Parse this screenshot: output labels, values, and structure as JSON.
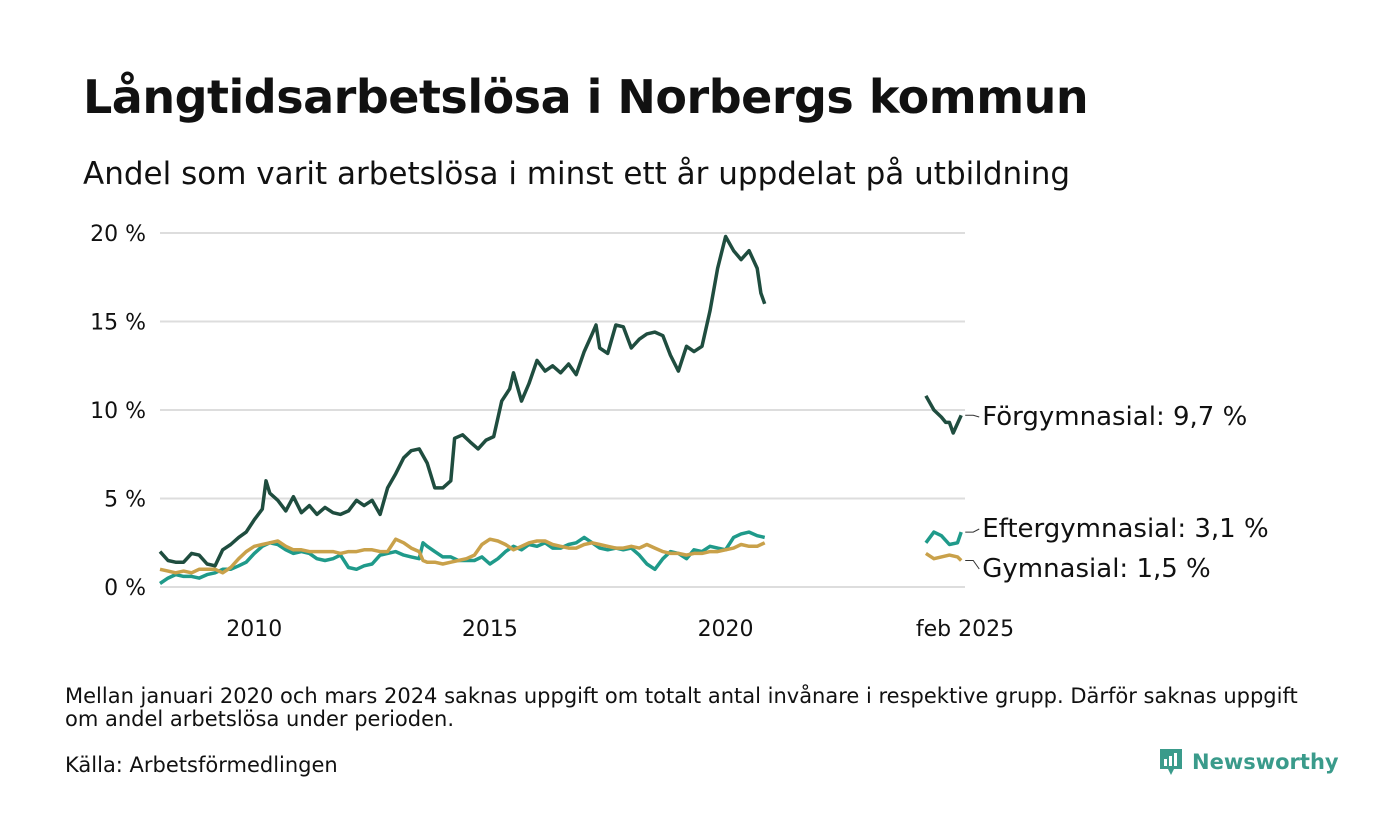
{
  "title": "Långtidsarbetslösa i Norbergs kommun",
  "subtitle": "Andel som varit arbetslösa i minst ett år uppdelat på utbildning",
  "note": "Mellan januari 2020 och mars 2024 saknas uppgift om totalt antal invånare i respektive grupp. Därför saknas uppgift om andel arbetslösa under perioden.",
  "source": "Källa: Arbetsförmedlingen",
  "brand": "Newsworthy",
  "colors": {
    "forgymnasial": "#1f4d3f",
    "eftergymnasial": "#1f9a8a",
    "gymnasial": "#c9a14a",
    "grid": "#dddddd",
    "brand": "#3a9b8b"
  },
  "chart_data": {
    "type": "line",
    "title": "Långtidsarbetslösa i Norbergs kommun",
    "subtitle": "Andel som varit arbetslösa i minst ett år uppdelat på utbildning",
    "xlabel": "",
    "ylabel": "",
    "ylim": [
      0,
      20
    ],
    "yticks": [
      0,
      5,
      10,
      15,
      20
    ],
    "ytick_labels": [
      "0 %",
      "5 %",
      "10 %",
      "15 %",
      "20 %"
    ],
    "xticks": [
      2010,
      2015,
      2020,
      2025.08
    ],
    "xtick_labels": [
      "2010",
      "2015",
      "2020",
      "feb 2025"
    ],
    "grid": true,
    "series": [
      {
        "name": "Förgymnasial",
        "label": "Förgymnasial: 9,7 %",
        "color": "#1f4d3f",
        "segments": [
          [
            [
              2008.0,
              2.0
            ],
            [
              2008.17,
              1.5
            ],
            [
              2008.33,
              1.4
            ],
            [
              2008.5,
              1.4
            ],
            [
              2008.67,
              1.9
            ],
            [
              2008.83,
              1.8
            ],
            [
              2009.0,
              1.3
            ],
            [
              2009.17,
              1.2
            ],
            [
              2009.33,
              2.1
            ],
            [
              2009.5,
              2.4
            ],
            [
              2009.67,
              2.8
            ],
            [
              2009.83,
              3.1
            ],
            [
              2010.0,
              3.8
            ],
            [
              2010.17,
              4.4
            ],
            [
              2010.25,
              6.0
            ],
            [
              2010.33,
              5.3
            ],
            [
              2010.5,
              4.9
            ],
            [
              2010.67,
              4.3
            ],
            [
              2010.83,
              5.1
            ],
            [
              2011.0,
              4.2
            ],
            [
              2011.17,
              4.6
            ],
            [
              2011.33,
              4.1
            ],
            [
              2011.5,
              4.5
            ],
            [
              2011.67,
              4.2
            ],
            [
              2011.83,
              4.1
            ],
            [
              2012.0,
              4.3
            ],
            [
              2012.17,
              4.9
            ],
            [
              2012.33,
              4.6
            ],
            [
              2012.5,
              4.9
            ],
            [
              2012.67,
              4.1
            ],
            [
              2012.83,
              5.6
            ],
            [
              2013.0,
              6.4
            ],
            [
              2013.17,
              7.3
            ],
            [
              2013.33,
              7.7
            ],
            [
              2013.5,
              7.8
            ],
            [
              2013.67,
              7.0
            ],
            [
              2013.83,
              5.6
            ],
            [
              2014.0,
              5.6
            ],
            [
              2014.17,
              6.0
            ],
            [
              2014.25,
              8.4
            ],
            [
              2014.42,
              8.6
            ],
            [
              2014.58,
              8.2
            ],
            [
              2014.75,
              7.8
            ],
            [
              2014.92,
              8.3
            ],
            [
              2015.08,
              8.5
            ],
            [
              2015.25,
              10.5
            ],
            [
              2015.42,
              11.2
            ],
            [
              2015.5,
              12.1
            ],
            [
              2015.67,
              10.5
            ],
            [
              2015.83,
              11.5
            ],
            [
              2016.0,
              12.8
            ],
            [
              2016.17,
              12.2
            ],
            [
              2016.33,
              12.5
            ],
            [
              2016.5,
              12.1
            ],
            [
              2016.67,
              12.6
            ],
            [
              2016.83,
              12.0
            ],
            [
              2017.0,
              13.3
            ],
            [
              2017.17,
              14.3
            ],
            [
              2017.25,
              14.8
            ],
            [
              2017.33,
              13.5
            ],
            [
              2017.5,
              13.2
            ],
            [
              2017.67,
              14.8
            ],
            [
              2017.83,
              14.7
            ],
            [
              2018.0,
              13.5
            ],
            [
              2018.17,
              14.0
            ],
            [
              2018.33,
              14.3
            ],
            [
              2018.5,
              14.4
            ],
            [
              2018.67,
              14.2
            ],
            [
              2018.83,
              13.1
            ],
            [
              2019.0,
              12.2
            ],
            [
              2019.17,
              13.6
            ],
            [
              2019.33,
              13.3
            ],
            [
              2019.5,
              13.6
            ],
            [
              2019.67,
              15.6
            ],
            [
              2019.83,
              18.0
            ],
            [
              2020.0,
              19.8
            ],
            [
              2020.17,
              19.0
            ],
            [
              2020.33,
              18.5
            ],
            [
              2020.5,
              19.0
            ],
            [
              2020.67,
              18.0
            ],
            [
              2020.75,
              16.6
            ],
            [
              2020.83,
              16.0
            ]
          ],
          [
            [
              2024.25,
              10.8
            ],
            [
              2024.42,
              10.0
            ],
            [
              2024.58,
              9.6
            ],
            [
              2024.67,
              9.3
            ],
            [
              2024.75,
              9.3
            ],
            [
              2024.83,
              8.7
            ],
            [
              2025.0,
              9.7
            ]
          ]
        ]
      },
      {
        "name": "Eftergymnasial",
        "label": "Eftergymnasial: 3,1 %",
        "color": "#1f9a8a",
        "segments": [
          [
            [
              2008.0,
              0.2
            ],
            [
              2008.17,
              0.5
            ],
            [
              2008.33,
              0.7
            ],
            [
              2008.5,
              0.6
            ],
            [
              2008.67,
              0.6
            ],
            [
              2008.83,
              0.5
            ],
            [
              2009.0,
              0.7
            ],
            [
              2009.17,
              0.8
            ],
            [
              2009.33,
              1.0
            ],
            [
              2009.5,
              1.0
            ],
            [
              2009.67,
              1.2
            ],
            [
              2009.83,
              1.4
            ],
            [
              2010.0,
              1.9
            ],
            [
              2010.17,
              2.3
            ],
            [
              2010.33,
              2.5
            ],
            [
              2010.5,
              2.4
            ],
            [
              2010.67,
              2.1
            ],
            [
              2010.83,
              1.9
            ],
            [
              2011.0,
              2.0
            ],
            [
              2011.17,
              1.9
            ],
            [
              2011.33,
              1.6
            ],
            [
              2011.5,
              1.5
            ],
            [
              2011.67,
              1.6
            ],
            [
              2011.83,
              1.8
            ],
            [
              2012.0,
              1.1
            ],
            [
              2012.17,
              1.0
            ],
            [
              2012.33,
              1.2
            ],
            [
              2012.5,
              1.3
            ],
            [
              2012.67,
              1.8
            ],
            [
              2012.83,
              1.9
            ],
            [
              2013.0,
              2.0
            ],
            [
              2013.17,
              1.8
            ],
            [
              2013.33,
              1.7
            ],
            [
              2013.5,
              1.6
            ],
            [
              2013.58,
              2.5
            ],
            [
              2013.67,
              2.3
            ],
            [
              2013.83,
              2.0
            ],
            [
              2014.0,
              1.7
            ],
            [
              2014.17,
              1.7
            ],
            [
              2014.33,
              1.5
            ],
            [
              2014.5,
              1.5
            ],
            [
              2014.67,
              1.5
            ],
            [
              2014.83,
              1.7
            ],
            [
              2015.0,
              1.3
            ],
            [
              2015.17,
              1.6
            ],
            [
              2015.33,
              2.0
            ],
            [
              2015.5,
              2.3
            ],
            [
              2015.67,
              2.1
            ],
            [
              2015.83,
              2.4
            ],
            [
              2016.0,
              2.3
            ],
            [
              2016.17,
              2.5
            ],
            [
              2016.33,
              2.2
            ],
            [
              2016.5,
              2.2
            ],
            [
              2016.67,
              2.4
            ],
            [
              2016.83,
              2.5
            ],
            [
              2017.0,
              2.8
            ],
            [
              2017.17,
              2.5
            ],
            [
              2017.33,
              2.2
            ],
            [
              2017.5,
              2.1
            ],
            [
              2017.67,
              2.2
            ],
            [
              2017.83,
              2.1
            ],
            [
              2018.0,
              2.2
            ],
            [
              2018.17,
              1.8
            ],
            [
              2018.33,
              1.3
            ],
            [
              2018.5,
              1.0
            ],
            [
              2018.67,
              1.6
            ],
            [
              2018.83,
              2.0
            ],
            [
              2019.0,
              1.9
            ],
            [
              2019.17,
              1.6
            ],
            [
              2019.33,
              2.1
            ],
            [
              2019.5,
              2.0
            ],
            [
              2019.67,
              2.3
            ],
            [
              2019.83,
              2.2
            ],
            [
              2020.0,
              2.1
            ],
            [
              2020.17,
              2.8
            ],
            [
              2020.33,
              3.0
            ],
            [
              2020.5,
              3.1
            ],
            [
              2020.67,
              2.9
            ],
            [
              2020.83,
              2.8
            ]
          ],
          [
            [
              2024.25,
              2.5
            ],
            [
              2024.42,
              3.1
            ],
            [
              2024.58,
              2.9
            ],
            [
              2024.75,
              2.4
            ],
            [
              2024.92,
              2.5
            ],
            [
              2025.0,
              3.1
            ]
          ]
        ]
      },
      {
        "name": "Gymnasial",
        "label": "Gymnasial: 1,5 %",
        "color": "#c9a14a",
        "segments": [
          [
            [
              2008.0,
              1.0
            ],
            [
              2008.17,
              0.9
            ],
            [
              2008.33,
              0.8
            ],
            [
              2008.5,
              0.9
            ],
            [
              2008.67,
              0.8
            ],
            [
              2008.83,
              1.0
            ],
            [
              2009.0,
              1.0
            ],
            [
              2009.17,
              1.0
            ],
            [
              2009.33,
              0.8
            ],
            [
              2009.5,
              1.1
            ],
            [
              2009.67,
              1.6
            ],
            [
              2009.83,
              2.0
            ],
            [
              2010.0,
              2.3
            ],
            [
              2010.17,
              2.4
            ],
            [
              2010.33,
              2.5
            ],
            [
              2010.5,
              2.6
            ],
            [
              2010.67,
              2.3
            ],
            [
              2010.83,
              2.1
            ],
            [
              2011.0,
              2.1
            ],
            [
              2011.17,
              2.0
            ],
            [
              2011.33,
              2.0
            ],
            [
              2011.5,
              2.0
            ],
            [
              2011.67,
              2.0
            ],
            [
              2011.83,
              1.9
            ],
            [
              2012.0,
              2.0
            ],
            [
              2012.17,
              2.0
            ],
            [
              2012.33,
              2.1
            ],
            [
              2012.5,
              2.1
            ],
            [
              2012.67,
              2.0
            ],
            [
              2012.83,
              2.0
            ],
            [
              2013.0,
              2.7
            ],
            [
              2013.17,
              2.5
            ],
            [
              2013.33,
              2.2
            ],
            [
              2013.5,
              2.0
            ],
            [
              2013.58,
              1.5
            ],
            [
              2013.67,
              1.4
            ],
            [
              2013.83,
              1.4
            ],
            [
              2014.0,
              1.3
            ],
            [
              2014.17,
              1.4
            ],
            [
              2014.33,
              1.5
            ],
            [
              2014.5,
              1.6
            ],
            [
              2014.67,
              1.8
            ],
            [
              2014.83,
              2.4
            ],
            [
              2015.0,
              2.7
            ],
            [
              2015.17,
              2.6
            ],
            [
              2015.33,
              2.4
            ],
            [
              2015.5,
              2.1
            ],
            [
              2015.67,
              2.3
            ],
            [
              2015.83,
              2.5
            ],
            [
              2016.0,
              2.6
            ],
            [
              2016.17,
              2.6
            ],
            [
              2016.33,
              2.4
            ],
            [
              2016.5,
              2.3
            ],
            [
              2016.67,
              2.2
            ],
            [
              2016.83,
              2.2
            ],
            [
              2017.0,
              2.4
            ],
            [
              2017.17,
              2.5
            ],
            [
              2017.33,
              2.4
            ],
            [
              2017.5,
              2.3
            ],
            [
              2017.67,
              2.2
            ],
            [
              2017.83,
              2.2
            ],
            [
              2018.0,
              2.3
            ],
            [
              2018.17,
              2.2
            ],
            [
              2018.33,
              2.4
            ],
            [
              2018.5,
              2.2
            ],
            [
              2018.67,
              2.0
            ],
            [
              2018.83,
              1.9
            ],
            [
              2019.0,
              1.9
            ],
            [
              2019.17,
              1.8
            ],
            [
              2019.33,
              1.9
            ],
            [
              2019.5,
              1.9
            ],
            [
              2019.67,
              2.0
            ],
            [
              2019.83,
              2.0
            ],
            [
              2020.0,
              2.1
            ],
            [
              2020.17,
              2.2
            ],
            [
              2020.33,
              2.4
            ],
            [
              2020.5,
              2.3
            ],
            [
              2020.67,
              2.3
            ],
            [
              2020.83,
              2.5
            ]
          ],
          [
            [
              2024.25,
              1.9
            ],
            [
              2024.42,
              1.6
            ],
            [
              2024.58,
              1.7
            ],
            [
              2024.75,
              1.8
            ],
            [
              2024.92,
              1.7
            ],
            [
              2025.0,
              1.5
            ]
          ]
        ]
      }
    ]
  }
}
